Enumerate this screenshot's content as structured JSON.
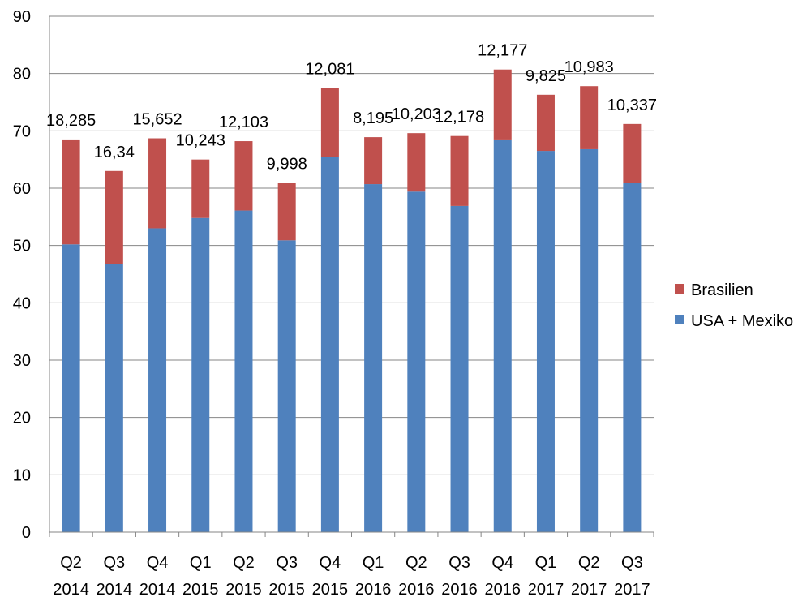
{
  "chart_data": {
    "type": "bar",
    "stacked": true,
    "categories": [
      [
        "Q2",
        "2014"
      ],
      [
        "Q3",
        "2014"
      ],
      [
        "Q4",
        "2014"
      ],
      [
        "Q1",
        "2015"
      ],
      [
        "Q2",
        "2015"
      ],
      [
        "Q3",
        "2015"
      ],
      [
        "Q4",
        "2015"
      ],
      [
        "Q1",
        "2016"
      ],
      [
        "Q2",
        "2016"
      ],
      [
        "Q3",
        "2016"
      ],
      [
        "Q4",
        "2016"
      ],
      [
        "Q1",
        "2017"
      ],
      [
        "Q2",
        "2017"
      ],
      [
        "Q3",
        "2017"
      ]
    ],
    "series": [
      {
        "name": "USA + Mexiko",
        "color": "#4F81BD",
        "values": [
          50.2,
          46.7,
          53.0,
          54.8,
          56.1,
          50.9,
          65.4,
          60.7,
          59.4,
          56.9,
          68.5,
          66.5,
          66.8,
          60.9
        ]
      },
      {
        "name": "Brasilien",
        "color": "#C0504D",
        "values": [
          18.3,
          16.3,
          15.7,
          10.2,
          12.1,
          10.0,
          12.1,
          8.2,
          10.2,
          12.2,
          12.2,
          9.8,
          11.0,
          10.3
        ]
      }
    ],
    "data_labels": [
      "18,285",
      "16,34",
      "15,652",
      "10,243",
      "12,103",
      "9,998",
      "12,081",
      "8,195",
      "10,203",
      "12,178",
      "12,177",
      "9,825",
      "10,983",
      "10,337"
    ],
    "y_ticks": [
      "0",
      "10",
      "20",
      "30",
      "40",
      "50",
      "60",
      "70",
      "80",
      "90"
    ],
    "ylim": [
      0,
      90
    ],
    "grid": true,
    "legend_position": "right",
    "legend_order": [
      "Brasilien",
      "USA + Mexiko"
    ]
  }
}
